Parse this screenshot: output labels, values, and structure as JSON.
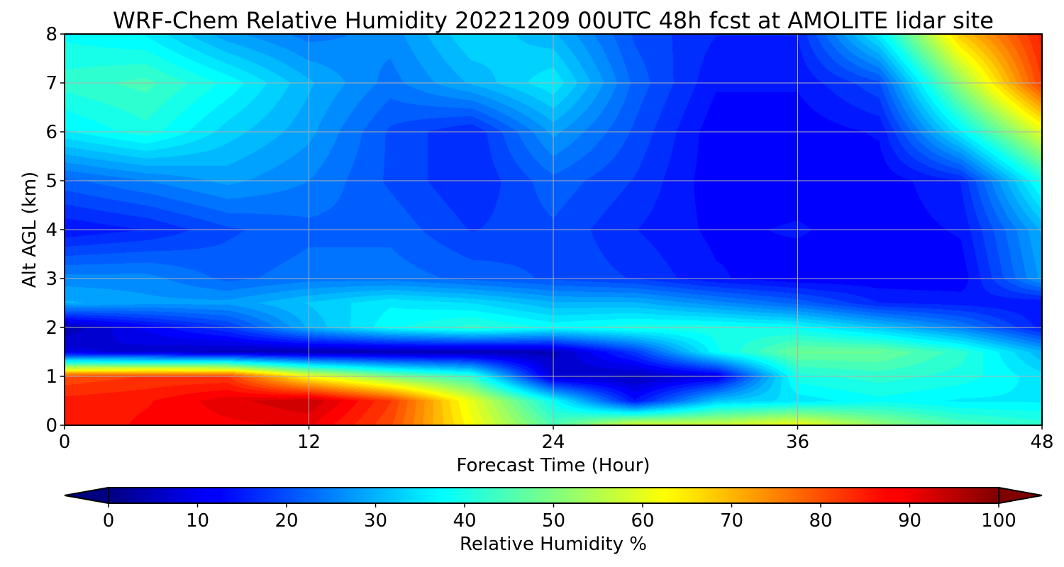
{
  "chart_data": {
    "type": "heatmap",
    "title": "WRF-Chem Relative Humidity 20221209 00UTC 48h fcst at AMOLITE lidar site",
    "xlabel": "Forecast Time (Hour)",
    "ylabel": "Alt AGL (km)",
    "xlim": [
      0,
      48
    ],
    "ylim": [
      0,
      8
    ],
    "xticks": [
      0,
      12,
      24,
      36,
      48
    ],
    "yticks": [
      0,
      1,
      2,
      3,
      4,
      5,
      6,
      7,
      8
    ],
    "grid": true,
    "colormap": "jet",
    "colorbar": {
      "label": "Relative Humidity %",
      "ticks": [
        0,
        10,
        20,
        30,
        40,
        50,
        60,
        70,
        80,
        90,
        100
      ],
      "range": [
        0,
        100
      ],
      "extend": "both",
      "orientation": "horizontal"
    },
    "x": [
      0,
      4,
      8,
      12,
      16,
      20,
      24,
      28,
      32,
      36,
      40,
      44,
      48
    ],
    "y": [
      0,
      0.5,
      1,
      1.5,
      2,
      2.5,
      3,
      4,
      5,
      6,
      7,
      8
    ],
    "z": [
      [
        84,
        87,
        88,
        89,
        80,
        62,
        45,
        60,
        58,
        62,
        52,
        45,
        42
      ],
      [
        85,
        86,
        90,
        93,
        82,
        60,
        38,
        14,
        32,
        35,
        38,
        36,
        36
      ],
      [
        80,
        82,
        82,
        62,
        50,
        42,
        8,
        6,
        10,
        40,
        42,
        40,
        35
      ],
      [
        10,
        8,
        6,
        5,
        5,
        5,
        6,
        18,
        38,
        48,
        48,
        42,
        30
      ],
      [
        5,
        12,
        18,
        30,
        38,
        42,
        38,
        40,
        40,
        38,
        32,
        25,
        15
      ],
      [
        30,
        28,
        28,
        32,
        36,
        34,
        30,
        30,
        26,
        22,
        16,
        15,
        14
      ],
      [
        26,
        26,
        22,
        24,
        24,
        22,
        20,
        18,
        14,
        12,
        12,
        12,
        28
      ],
      [
        14,
        16,
        20,
        22,
        22,
        18,
        20,
        16,
        13,
        14,
        12,
        14,
        30
      ],
      [
        22,
        25,
        28,
        25,
        20,
        16,
        22,
        18,
        12,
        12,
        12,
        16,
        40
      ],
      [
        36,
        40,
        33,
        28,
        20,
        16,
        28,
        20,
        12,
        12,
        14,
        36,
        60
      ],
      [
        42,
        44,
        38,
        30,
        24,
        30,
        36,
        22,
        14,
        14,
        20,
        52,
        82
      ],
      [
        38,
        36,
        28,
        24,
        26,
        34,
        30,
        20,
        16,
        16,
        36,
        68,
        85
      ]
    ]
  }
}
